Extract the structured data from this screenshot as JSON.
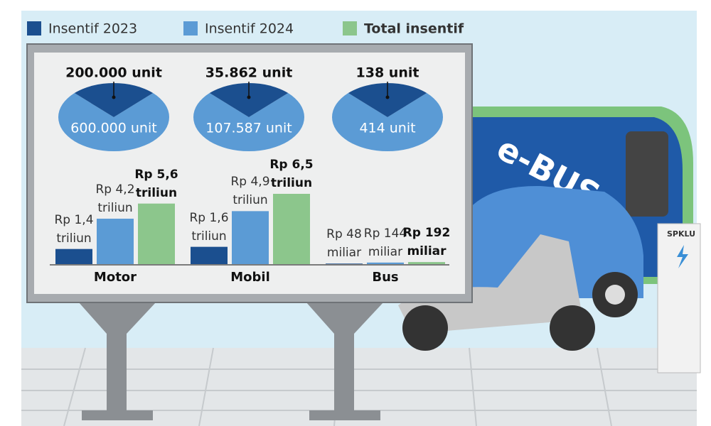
{
  "chart_data": [
    {
      "type": "bar",
      "categories": [
        "Motor",
        "Mobil",
        "Bus"
      ],
      "series": [
        {
          "name": "Insentif 2023",
          "color": "#1b4f8f",
          "values": [
            1400,
            1600,
            48
          ],
          "value_labels": [
            "Rp 1,4 triliun",
            "Rp 1,6 triliun",
            "Rp 48 miliar"
          ]
        },
        {
          "name": "Insentif 2024",
          "color": "#5b9bd5",
          "values": [
            4200,
            4900,
            144
          ],
          "value_labels": [
            "Rp 4,2 triliun",
            "Rp 4,9 triliun",
            "Rp 144 miliar"
          ]
        },
        {
          "name": "Total insentif",
          "color": "#8cc68c",
          "values": [
            5600,
            6500,
            192
          ],
          "value_labels": [
            "Rp 5,6 triliun",
            "Rp 6,5 triliun",
            "Rp 192 miliar"
          ]
        }
      ]
    },
    {
      "type": "pie",
      "slices": [
        {
          "values": [
            200000,
            600000
          ],
          "value_labels": [
            "200.000 unit",
            "600.000 unit"
          ],
          "colors": [
            "#1b4f8f",
            "#5b9bd5"
          ]
        },
        {
          "values": [
            35862,
            107587
          ],
          "value_labels": [
            "35.862 unit",
            "107.587 unit"
          ],
          "colors": [
            "#1b4f8f",
            "#5b9bd5"
          ]
        },
        {
          "values": [
            138,
            414
          ],
          "value_labels": [
            "138 unit",
            "414 unit"
          ],
          "colors": [
            "#1b4f8f",
            "#5b9bd5"
          ]
        }
      ]
    }
  ],
  "scene": {
    "bus_text": "e-BUS",
    "station_text": "SPKLU"
  }
}
